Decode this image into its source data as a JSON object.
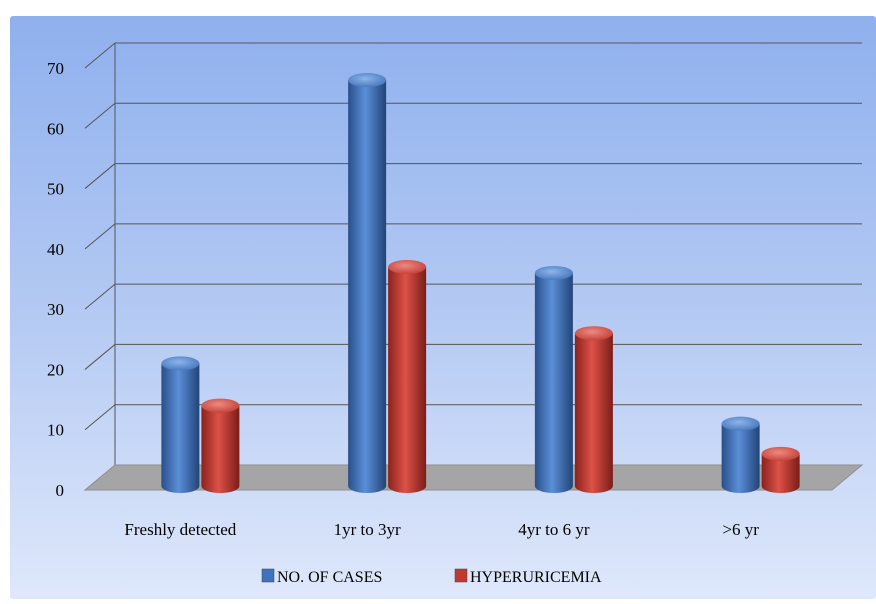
{
  "chart_data": {
    "type": "bar",
    "title": "",
    "xlabel": "",
    "ylabel": "",
    "categories": [
      "Freshly detected",
      "1yr to 3yr",
      "4yr to 6 yr",
      ">6 yr"
    ],
    "series": [
      {
        "name": "NO. OF CASES",
        "values": [
          21,
          68,
          36,
          11
        ],
        "color": "#3d73bf"
      },
      {
        "name": "HYPERURICEMIA",
        "values": [
          14,
          37,
          26,
          6
        ],
        "color": "#c0382f"
      }
    ],
    "ylim": [
      0,
      70
    ],
    "yticks": [
      "0",
      "10",
      "20",
      "30",
      "40",
      "50",
      "60",
      "70"
    ],
    "grid": true,
    "legend_position": "bottom",
    "background_color": "#a9c2f2",
    "floor_color": "#a5a5a5"
  }
}
